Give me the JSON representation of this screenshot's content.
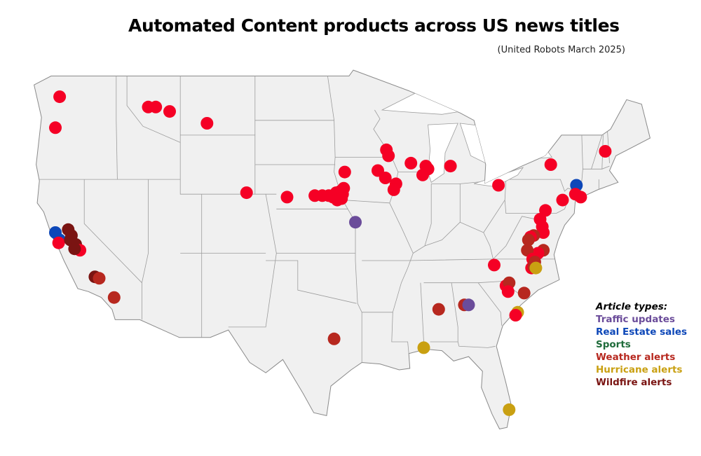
{
  "title": "Automated Content products across US news titles",
  "subtitle": "(United Robots March 2025)",
  "colors": {
    "default": "#f50025",
    "traffic": "#6b4c9a",
    "realestate": "#0d47b8",
    "sports": "#1e6b3a",
    "weather": "#b7281f",
    "hurricane": "#c9a012",
    "wildfire": "#7a1412"
  },
  "legend": {
    "heading": "Article types:",
    "items": [
      {
        "key": "traffic",
        "label": "Traffic updates",
        "color": "#6b4c9a"
      },
      {
        "key": "realestate",
        "label": "Real Estate sales",
        "color": "#0d47b8"
      },
      {
        "key": "sports",
        "label": "Sports",
        "color": "#1e6b3a"
      },
      {
        "key": "weather",
        "label": "Weather alerts",
        "color": "#b7281f"
      },
      {
        "key": "hurricane",
        "label": "Hurricane alerts",
        "color": "#c9a012"
      },
      {
        "key": "wildfire",
        "label": "Wildfire alerts",
        "color": "#7a1412"
      }
    ]
  },
  "locations": [
    {
      "type": "default",
      "lon": -122.3,
      "lat": 47.6
    },
    {
      "type": "default",
      "lon": -122.7,
      "lat": 45.5
    },
    {
      "type": "default",
      "lon": -114.0,
      "lat": 46.9
    },
    {
      "type": "default",
      "lon": -113.3,
      "lat": 46.9
    },
    {
      "type": "default",
      "lon": -112.0,
      "lat": 46.6
    },
    {
      "type": "default",
      "lon": -108.5,
      "lat": 45.8
    },
    {
      "type": "realestate",
      "lon": -122.7,
      "lat": 38.4
    },
    {
      "type": "realestate",
      "lon": -122.3,
      "lat": 37.9
    },
    {
      "type": "default",
      "lon": -122.4,
      "lat": 37.7
    },
    {
      "type": "wildfire",
      "lon": -121.5,
      "lat": 38.6
    },
    {
      "type": "wildfire",
      "lon": -121.2,
      "lat": 38.2
    },
    {
      "type": "wildfire",
      "lon": -121.3,
      "lat": 37.9
    },
    {
      "type": "wildfire",
      "lon": -120.8,
      "lat": 37.6
    },
    {
      "type": "default",
      "lon": -120.4,
      "lat": 37.2
    },
    {
      "type": "wildfire",
      "lon": -120.9,
      "lat": 37.3
    },
    {
      "type": "wildfire",
      "lon": -119.0,
      "lat": 35.4
    },
    {
      "type": "weather",
      "lon": -118.6,
      "lat": 35.3
    },
    {
      "type": "weather",
      "lon": -117.2,
      "lat": 34.0
    },
    {
      "type": "default",
      "lon": -104.8,
      "lat": 41.1
    },
    {
      "type": "default",
      "lon": -101.0,
      "lat": 40.8
    },
    {
      "type": "default",
      "lon": -98.4,
      "lat": 40.9
    },
    {
      "type": "default",
      "lon": -97.7,
      "lat": 40.9
    },
    {
      "type": "default",
      "lon": -97.1,
      "lat": 40.9
    },
    {
      "type": "default",
      "lon": -96.7,
      "lat": 40.8
    },
    {
      "type": "default",
      "lon": -96.4,
      "lat": 41.1
    },
    {
      "type": "default",
      "lon": -96.0,
      "lat": 41.2
    },
    {
      "type": "default",
      "lon": -95.8,
      "lat": 41.0
    },
    {
      "type": "default",
      "lon": -95.7,
      "lat": 41.4
    },
    {
      "type": "default",
      "lon": -95.9,
      "lat": 40.7
    },
    {
      "type": "default",
      "lon": -96.3,
      "lat": 40.6
    },
    {
      "type": "default",
      "lon": -95.6,
      "lat": 42.5
    },
    {
      "type": "traffic",
      "lon": -94.6,
      "lat": 39.1
    },
    {
      "type": "default",
      "lon": -91.7,
      "lat": 44.0
    },
    {
      "type": "default",
      "lon": -91.5,
      "lat": 43.6
    },
    {
      "type": "default",
      "lon": -92.5,
      "lat": 42.6
    },
    {
      "type": "default",
      "lon": -91.8,
      "lat": 42.1
    },
    {
      "type": "default",
      "lon": -90.8,
      "lat": 41.7
    },
    {
      "type": "default",
      "lon": -91.0,
      "lat": 41.3
    },
    {
      "type": "default",
      "lon": -89.4,
      "lat": 43.1
    },
    {
      "type": "default",
      "lon": -88.0,
      "lat": 42.9
    },
    {
      "type": "default",
      "lon": -87.8,
      "lat": 42.7
    },
    {
      "type": "default",
      "lon": -88.3,
      "lat": 42.3
    },
    {
      "type": "default",
      "lon": -85.7,
      "lat": 42.9
    },
    {
      "type": "default",
      "lon": -81.2,
      "lat": 41.6
    },
    {
      "type": "default",
      "lon": -76.3,
      "lat": 43.0
    },
    {
      "type": "default",
      "lon": -71.2,
      "lat": 43.9
    },
    {
      "type": "realestate",
      "lon": -73.9,
      "lat": 41.6
    },
    {
      "type": "default",
      "lon": -74.0,
      "lat": 41.0
    },
    {
      "type": "default",
      "lon": -73.5,
      "lat": 40.8
    },
    {
      "type": "default",
      "lon": -75.2,
      "lat": 40.6
    },
    {
      "type": "default",
      "lon": -76.8,
      "lat": 39.9
    },
    {
      "type": "default",
      "lon": -77.3,
      "lat": 39.3
    },
    {
      "type": "default",
      "lon": -77.1,
      "lat": 38.8
    },
    {
      "type": "default",
      "lon": -77.0,
      "lat": 38.4
    },
    {
      "type": "weather",
      "lon": -77.9,
      "lat": 38.2
    },
    {
      "type": "default",
      "lon": -78.2,
      "lat": 38.1
    },
    {
      "type": "weather",
      "lon": -78.4,
      "lat": 37.9
    },
    {
      "type": "weather",
      "lon": -77.0,
      "lat": 37.2
    },
    {
      "type": "default",
      "lon": -77.5,
      "lat": 37.0
    },
    {
      "type": "weather",
      "lon": -78.5,
      "lat": 37.2
    },
    {
      "type": "default",
      "lon": -78.0,
      "lat": 36.6
    },
    {
      "type": "weather",
      "lon": -77.8,
      "lat": 36.4
    },
    {
      "type": "default",
      "lon": -78.1,
      "lat": 36.0
    },
    {
      "type": "weather",
      "lon": -77.9,
      "lat": 36.1
    },
    {
      "type": "hurricane",
      "lon": -77.7,
      "lat": 36.0
    },
    {
      "type": "default",
      "lon": -81.6,
      "lat": 36.2
    },
    {
      "type": "default",
      "lon": -80.5,
      "lat": 34.8
    },
    {
      "type": "weather",
      "lon": -80.2,
      "lat": 35.0
    },
    {
      "type": "default",
      "lon": -80.3,
      "lat": 34.4
    },
    {
      "type": "weather",
      "lon": -78.8,
      "lat": 34.3
    },
    {
      "type": "hurricane",
      "lon": -79.4,
      "lat": 33.0
    },
    {
      "type": "default",
      "lon": -79.6,
      "lat": 32.8
    },
    {
      "type": "weather",
      "lon": -84.4,
      "lat": 33.5
    },
    {
      "type": "traffic",
      "lon": -84.0,
      "lat": 33.5
    },
    {
      "type": "weather",
      "lon": -86.8,
      "lat": 33.2
    },
    {
      "type": "weather",
      "lon": -96.6,
      "lat": 31.2
    },
    {
      "type": "hurricane",
      "lon": -88.2,
      "lat": 30.6
    },
    {
      "type": "hurricane",
      "lon": -80.2,
      "lat": 26.4
    }
  ]
}
